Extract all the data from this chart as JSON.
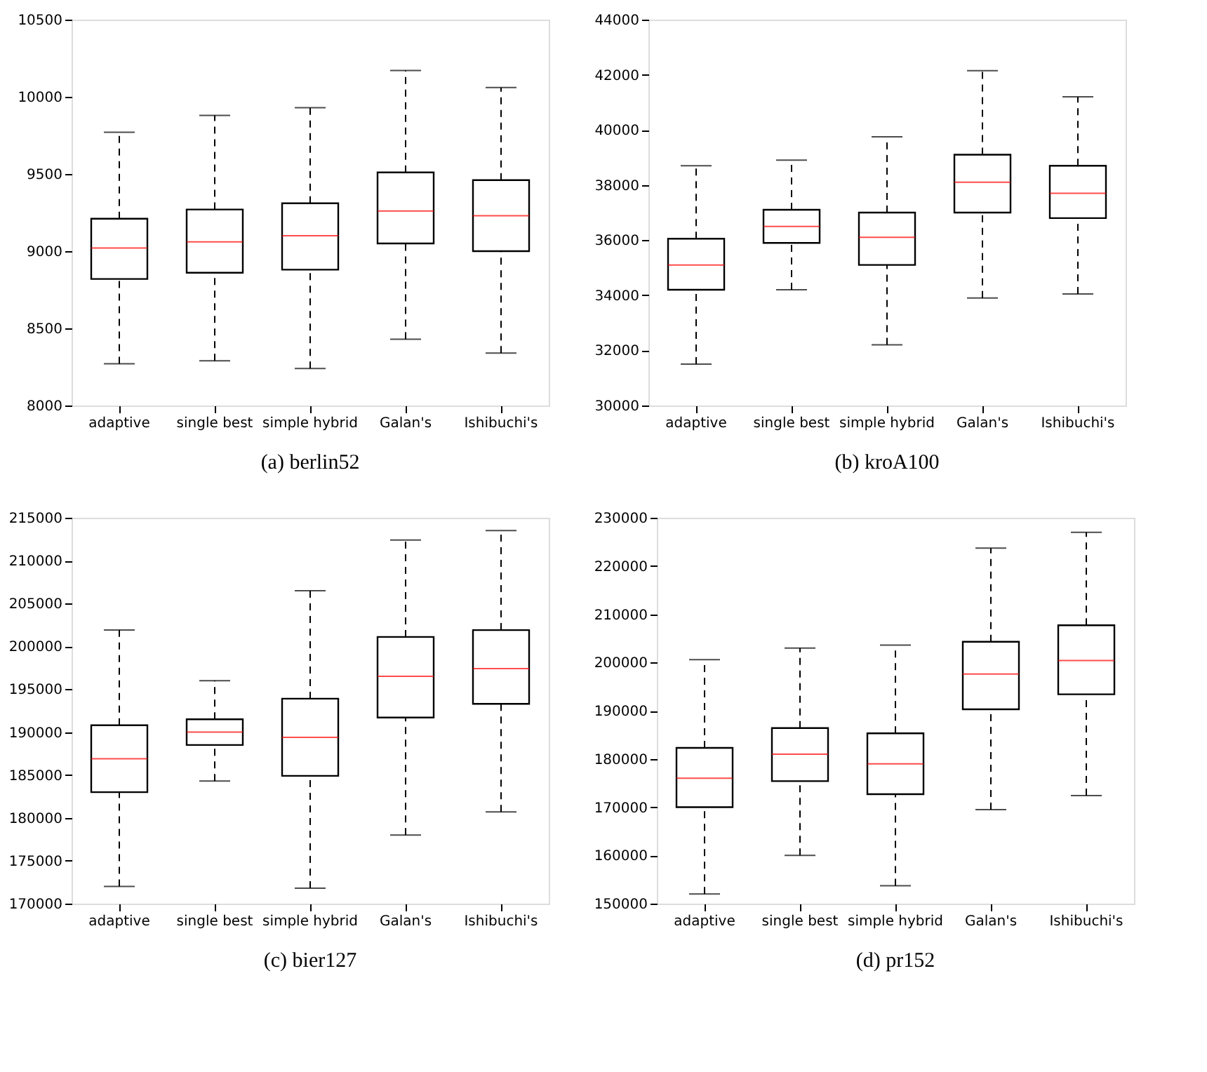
{
  "chart_data": [
    {
      "type": "box",
      "title": "(a)  berlin52",
      "categories": [
        "adaptive",
        "single best",
        "simple hybrid",
        "Galan's",
        "Ishibuchi's"
      ],
      "ylim": [
        8000,
        10500
      ],
      "yticks": [
        8000,
        8500,
        9000,
        9500,
        10000,
        10500
      ],
      "grid": false,
      "series": [
        {
          "boxes": [
            {
              "low": 8270,
              "q1": 8820,
              "median": 9020,
              "q3": 9210,
              "high": 9770
            },
            {
              "low": 8290,
              "q1": 8860,
              "median": 9060,
              "q3": 9270,
              "high": 9880
            },
            {
              "low": 8240,
              "q1": 8880,
              "median": 9100,
              "q3": 9310,
              "high": 9930
            },
            {
              "low": 8430,
              "q1": 9050,
              "median": 9260,
              "q3": 9510,
              "high": 10170
            },
            {
              "low": 8340,
              "q1": 9000,
              "median": 9230,
              "q3": 9460,
              "high": 10060
            }
          ]
        }
      ]
    },
    {
      "type": "box",
      "title": "(b)  kroA100",
      "categories": [
        "adaptive",
        "single best",
        "simple hybrid",
        "Galan's",
        "Ishibuchi's"
      ],
      "ylim": [
        30000,
        44000
      ],
      "yticks": [
        30000,
        32000,
        34000,
        36000,
        38000,
        40000,
        42000,
        44000
      ],
      "grid": false,
      "series": [
        {
          "boxes": [
            {
              "low": 31500,
              "q1": 34200,
              "median": 35100,
              "q3": 36050,
              "high": 38700
            },
            {
              "low": 34200,
              "q1": 35900,
              "median": 36500,
              "q3": 37100,
              "high": 38900
            },
            {
              "low": 32200,
              "q1": 35100,
              "median": 36100,
              "q3": 37000,
              "high": 39750
            },
            {
              "low": 33900,
              "q1": 37000,
              "median": 38100,
              "q3": 39100,
              "high": 42150
            },
            {
              "low": 34050,
              "q1": 36800,
              "median": 37700,
              "q3": 38700,
              "high": 41200
            }
          ]
        }
      ]
    },
    {
      "type": "box",
      "title": "(c)  bier127",
      "categories": [
        "adaptive",
        "single best",
        "simple hybrid",
        "Galan's",
        "Ishibuchi's"
      ],
      "ylim": [
        170000,
        215000
      ],
      "yticks": [
        170000,
        175000,
        180000,
        185000,
        190000,
        195000,
        200000,
        205000,
        210000,
        215000
      ],
      "grid": false,
      "series": [
        {
          "boxes": [
            {
              "low": 172000,
              "q1": 183000,
              "median": 186900,
              "q3": 190800,
              "high": 201900
            },
            {
              "low": 184300,
              "q1": 188500,
              "median": 190000,
              "q3": 191500,
              "high": 196000
            },
            {
              "low": 171800,
              "q1": 184900,
              "median": 189400,
              "q3": 193900,
              "high": 206500
            },
            {
              "low": 178000,
              "q1": 191700,
              "median": 196500,
              "q3": 201100,
              "high": 212400
            },
            {
              "low": 180700,
              "q1": 193300,
              "median": 197400,
              "q3": 201900,
              "high": 213500
            }
          ]
        }
      ]
    },
    {
      "type": "box",
      "title": "(d)  pr152",
      "categories": [
        "adaptive",
        "single best",
        "simple hybrid",
        "Galan's",
        "Ishibuchi's"
      ],
      "ylim": [
        150000,
        230000
      ],
      "yticks": [
        150000,
        160000,
        170000,
        180000,
        190000,
        200000,
        210000,
        220000,
        230000
      ],
      "grid": false,
      "series": [
        {
          "boxes": [
            {
              "low": 152000,
              "q1": 170000,
              "median": 176000,
              "q3": 182300,
              "high": 200600
            },
            {
              "low": 160000,
              "q1": 175400,
              "median": 181000,
              "q3": 186400,
              "high": 203000
            },
            {
              "low": 153700,
              "q1": 172700,
              "median": 179000,
              "q3": 185300,
              "high": 203600
            },
            {
              "low": 169500,
              "q1": 190300,
              "median": 197600,
              "q3": 204300,
              "high": 223700
            },
            {
              "low": 172400,
              "q1": 193400,
              "median": 200400,
              "q3": 207700,
              "high": 227000
            }
          ]
        }
      ]
    }
  ]
}
